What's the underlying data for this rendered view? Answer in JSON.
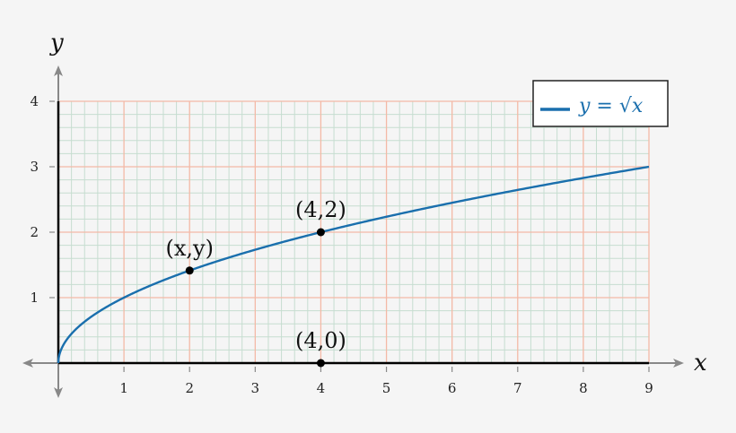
{
  "chart_data": {
    "type": "line",
    "xlabel": "x",
    "ylabel": "y",
    "xlim": [
      0,
      9
    ],
    "ylim": [
      0,
      4
    ],
    "x_ticks": [
      "1",
      "2",
      "3",
      "4",
      "5",
      "6",
      "7",
      "8",
      "9"
    ],
    "y_ticks": [
      "1",
      "2",
      "3",
      "4"
    ],
    "grid": {
      "major": 1,
      "minor": 0.2,
      "major_color": "#f4b9a6",
      "minor_color": "#c6ddd0"
    },
    "legend_position": "top-right",
    "series": [
      {
        "name": "y = √x",
        "function": "sqrt(x)",
        "x_range": [
          0,
          9
        ],
        "color": "#1a6fad"
      }
    ],
    "points": [
      {
        "x": 2,
        "y": 1.414,
        "label": "(x,y)"
      },
      {
        "x": 4,
        "y": 2,
        "label": "(4,2)"
      },
      {
        "x": 4,
        "y": 0,
        "label": "(4,0)"
      }
    ]
  }
}
